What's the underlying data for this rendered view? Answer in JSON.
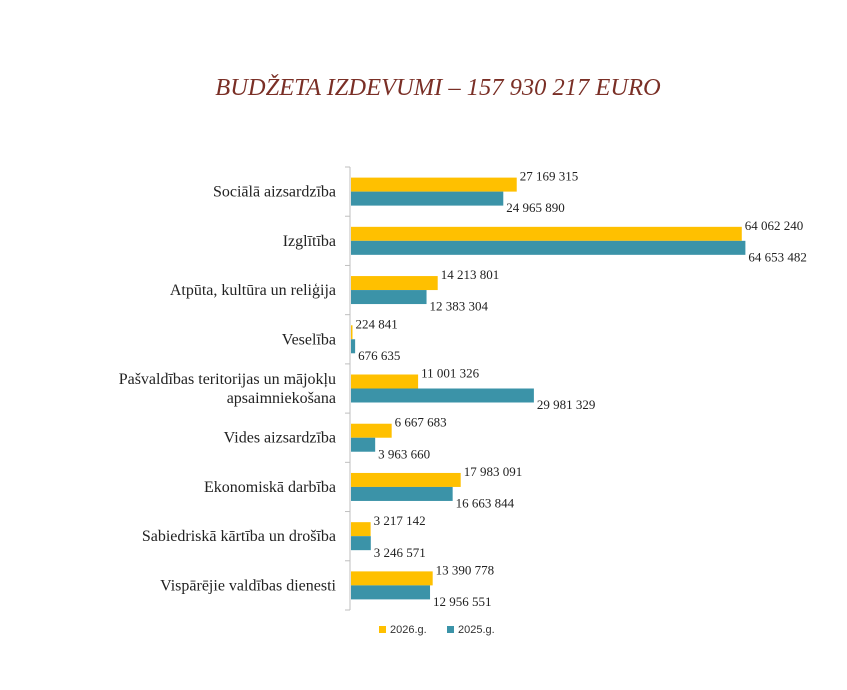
{
  "chart_data": {
    "type": "bar",
    "orientation": "horizontal",
    "title": "BUDŽETA IZDEVUMI – 157 930 217 EURO",
    "xlabel": "",
    "ylabel": "",
    "xlim": [
      0,
      70000000
    ],
    "grid": false,
    "legend_position": "bottom",
    "categories": [
      [
        "Sociālā aizsardzība"
      ],
      [
        "Izglītība"
      ],
      [
        "Atpūta, kultūra un reliģija"
      ],
      [
        "Veselība"
      ],
      [
        "Pašvaldības teritorijas un mājokļu",
        "apsaimniekošana"
      ],
      [
        "Vides aizsardzība"
      ],
      [
        "Ekonomiskā darbība"
      ],
      [
        "Sabiedriskā kārtība un drošība"
      ],
      [
        "Vispārējie valdības dienesti"
      ]
    ],
    "series": [
      {
        "name": "2026.g.",
        "color": "#FFC000",
        "values": [
          27169315,
          64062240,
          14213801,
          224841,
          11001326,
          6667683,
          17983091,
          3217142,
          13390778
        ],
        "labels": [
          "27 169 315",
          "64 062 240",
          "14 213 801",
          "224 841",
          "11 001 326",
          "6 667 683",
          "17 983 091",
          "3 217 142",
          "13 390 778"
        ]
      },
      {
        "name": "2025.g.",
        "color": "#3B93A8",
        "values": [
          24965890,
          64653482,
          12383304,
          676635,
          29981329,
          3963660,
          16663844,
          3246571,
          12956551
        ],
        "labels": [
          "24 965 890",
          "64 653 482",
          "12 383 304",
          "676 635",
          "29 981 329",
          "3 963 660",
          "16 663 844",
          "3 246 571",
          "12 956 551"
        ]
      }
    ]
  }
}
